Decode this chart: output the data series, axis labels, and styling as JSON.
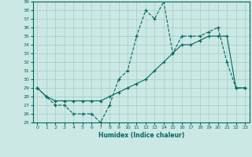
{
  "xlabel": "Humidex (Indice chaleur)",
  "bg_color": "#cce8e4",
  "grid_color": "#aad4d0",
  "line_color": "#006660",
  "xlim": [
    -0.5,
    23.5
  ],
  "ylim": [
    25,
    39
  ],
  "yticks": [
    25,
    26,
    27,
    28,
    29,
    30,
    31,
    32,
    33,
    34,
    35,
    36,
    37,
    38,
    39
  ],
  "xticks": [
    0,
    1,
    2,
    3,
    4,
    5,
    6,
    7,
    8,
    9,
    10,
    11,
    12,
    13,
    14,
    15,
    16,
    17,
    18,
    19,
    20,
    21,
    22,
    23
  ],
  "series1_x": [
    0,
    1,
    2,
    3,
    4,
    5,
    6,
    7,
    8,
    9,
    10,
    11,
    12,
    13,
    14,
    15,
    16,
    17,
    18,
    19,
    20,
    21,
    22,
    23
  ],
  "series1_y": [
    29,
    28,
    27,
    27,
    26,
    26,
    26,
    25,
    27,
    30,
    31,
    35,
    38,
    37,
    39,
    33,
    35,
    35,
    35,
    35.5,
    36,
    32,
    29,
    29
  ],
  "series2_x": [
    0,
    1,
    2,
    3,
    4,
    5,
    6,
    7,
    8,
    9,
    10,
    11,
    12,
    13,
    14,
    15,
    16,
    17,
    18,
    19,
    20,
    21,
    22,
    23
  ],
  "series2_y": [
    29,
    28,
    27.5,
    27.5,
    27.5,
    27.5,
    27.5,
    27.5,
    28,
    28.5,
    29,
    29.5,
    30,
    31,
    32,
    33,
    34,
    34,
    34.5,
    35,
    35,
    35,
    29,
    29
  ]
}
